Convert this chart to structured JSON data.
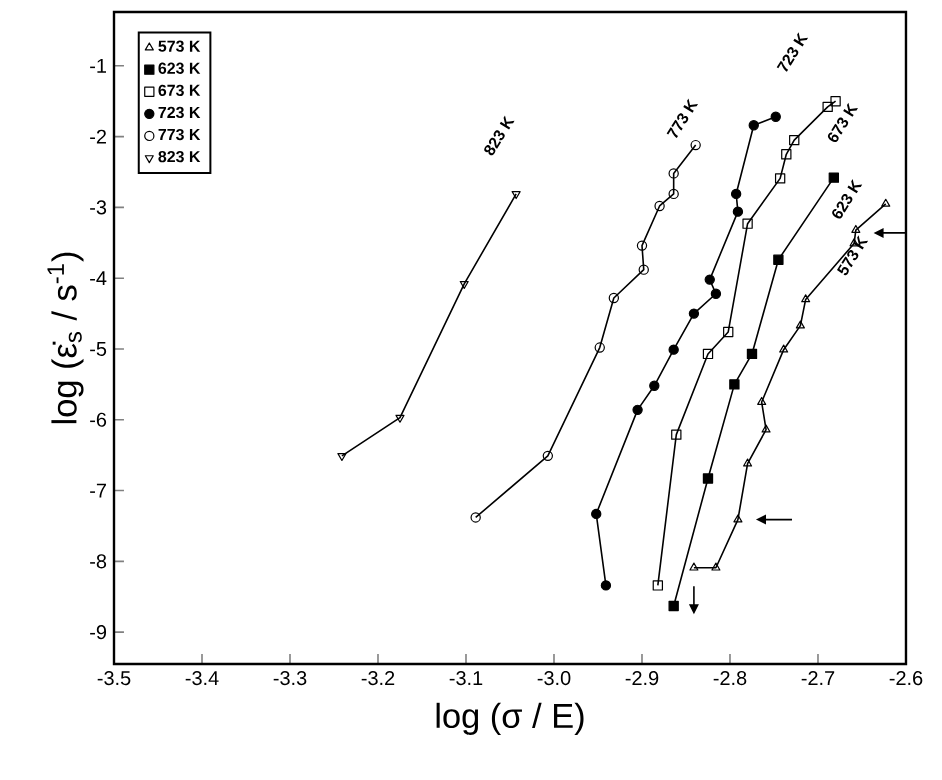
{
  "chart_data": {
    "type": "line",
    "xlabel": "log (σ / E)",
    "ylabel": "log (ε̇$_{s}$ / s$^{-1}$)",
    "xlim": [
      -3.5,
      -2.6
    ],
    "ylim": [
      -9.45,
      -0.24
    ],
    "xticks": [
      -3.5,
      -3.4,
      -3.3,
      -3.2,
      -3.1,
      {
        "value": -3.0,
        "label": "-3.0"
      },
      -2.9,
      -2.8,
      -2.7,
      -2.6
    ],
    "yticks": [
      -9,
      -8,
      -7,
      -6,
      -5,
      -4,
      -3,
      -2,
      -1
    ],
    "grid": false,
    "legend": "top left",
    "line_style": "solid",
    "series": [
      {
        "name": "573 K",
        "color": "#000000",
        "marker": "triangle-open",
        "x": [
          -2.841,
          -2.816,
          -2.791,
          -2.78,
          -2.759,
          -2.764,
          -2.739,
          -2.72,
          -2.714,
          -2.659,
          -2.657,
          -2.623
        ],
        "values": [
          -8.09,
          -8.09,
          -7.41,
          -6.62,
          -6.14,
          -5.75,
          -5.01,
          -4.67,
          -4.3,
          -3.51,
          -3.32,
          -2.95
        ]
      },
      {
        "name": "623 K",
        "color": "#000000",
        "marker": "square",
        "x": [
          -2.864,
          -2.825,
          -2.795,
          -2.775,
          -2.745,
          -2.682
        ],
        "values": [
          -8.63,
          -6.83,
          -5.5,
          -5.07,
          -3.74,
          -2.58
        ]
      },
      {
        "name": "673 K",
        "color": "#000000",
        "marker": "square-open",
        "x": [
          -2.882,
          -2.861,
          -2.825,
          -2.802,
          -2.78,
          -2.743,
          -2.736,
          -2.727,
          -2.689,
          -2.68
        ],
        "values": [
          -8.34,
          -6.21,
          -5.07,
          -4.76,
          -3.23,
          -2.59,
          -2.25,
          -2.05,
          -1.58,
          -1.5
        ]
      },
      {
        "name": "723 K",
        "color": "#000000",
        "marker": "circle",
        "x": [
          -2.941,
          -2.952,
          -2.905,
          -2.886,
          -2.864,
          -2.841,
          -2.816,
          -2.823,
          -2.791,
          -2.793,
          -2.773,
          -2.748
        ],
        "values": [
          -8.34,
          -7.33,
          -5.86,
          -5.52,
          -5.01,
          -4.5,
          -4.22,
          -4.02,
          -3.06,
          -2.81,
          -1.84,
          -1.72
        ]
      },
      {
        "name": "773 K",
        "color": "#000000",
        "marker": "circle-open",
        "x": [
          -3.089,
          -3.007,
          -2.948,
          -2.932,
          -2.898,
          -2.9,
          -2.88,
          -2.864,
          -2.864,
          -2.839
        ],
        "values": [
          -7.38,
          -6.51,
          -4.98,
          -4.28,
          -3.88,
          -3.54,
          -2.98,
          -2.81,
          -2.52,
          -2.12
        ]
      },
      {
        "name": "823 K",
        "color": "#000000",
        "marker": "triangle-down-open",
        "x": [
          -3.241,
          -3.175,
          -3.102,
          -3.043
        ],
        "values": [
          -6.51,
          -5.97,
          -4.08,
          -2.81
        ]
      }
    ]
  }
}
